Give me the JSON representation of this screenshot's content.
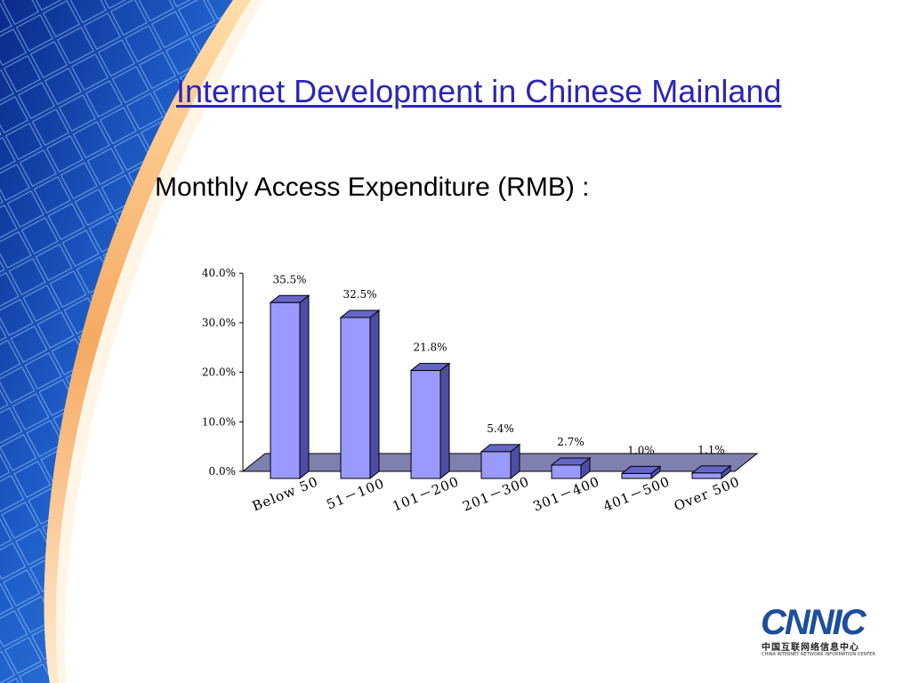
{
  "slide": {
    "title": "Internet Development in Chinese Mainland",
    "subtitle": "Monthly Access Expenditure (RMB) :"
  },
  "logo": {
    "wordmark": "CNNIC",
    "chinese_name": "中国互联网络信息中心",
    "english_name": "CHINA INTERNET NETWORK INFORMATION CENTER"
  },
  "colors": {
    "title": "#2a26b8",
    "bar_front": "#9999ff",
    "bar_side": "#4d4da6",
    "bar_top": "#6666c8",
    "floor": "#8080b0",
    "logo_blue": "#1c4f9c"
  },
  "chart_data": {
    "type": "bar",
    "categories": [
      "Below 50",
      "51－100",
      "101－200",
      "201－300",
      "301－400",
      "401－500",
      "Over 500"
    ],
    "values": [
      35.5,
      32.5,
      21.8,
      5.4,
      2.7,
      1.0,
      1.1
    ],
    "data_labels": [
      "35.5%",
      "32.5%",
      "21.8%",
      "5.4%",
      "2.7%",
      "1.0%",
      "1.1%"
    ],
    "y_ticks": [
      "0.0%",
      "10.0%",
      "20.0%",
      "30.0%",
      "40.0%"
    ],
    "ylim": [
      0,
      40
    ],
    "grid": false,
    "legend": "none",
    "style": "3d-column"
  }
}
